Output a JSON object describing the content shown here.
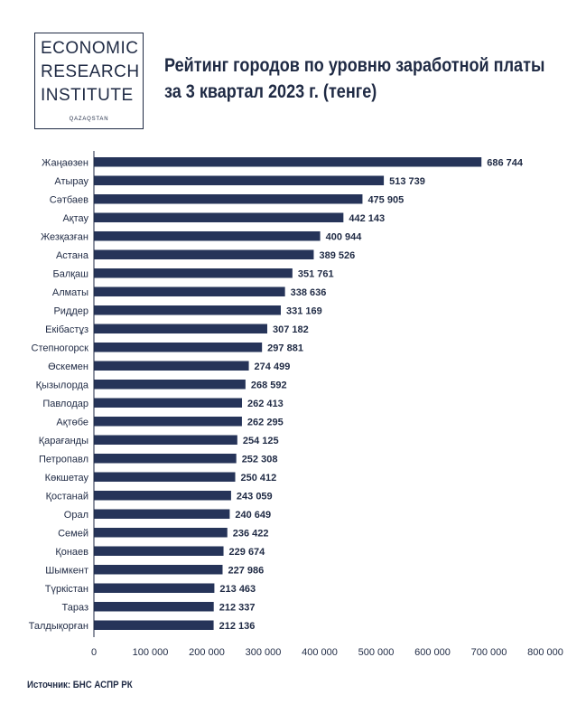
{
  "logo": {
    "line1": "ECONOMIC",
    "line2": "RESEARCH",
    "line3": "INSTITUTE",
    "sub": "QAZAQSTAN"
  },
  "title": {
    "line1": "Рейтинг городов по уровню заработной платы",
    "line2": "за 3 квартал 2023 г. (тенге)"
  },
  "source": "Источник: БНС АСПР РК",
  "chart_data": {
    "type": "bar",
    "orientation": "horizontal",
    "categories": [
      "Жаңаөзен",
      "Атырау",
      "Сәтбаев",
      "Ақтау",
      "Жезқазған",
      "Астана",
      "Балқаш",
      "Алматы",
      "Риддер",
      "Екібастұз",
      "Степногорск",
      "Өскемен",
      "Қызылорда",
      "Павлодар",
      "Ақтөбе",
      "Қарағанды",
      "Петропавл",
      "Көкшетау",
      "Қостанай",
      "Орал",
      "Семей",
      "Қонаев",
      "Шымкент",
      "Түркістан",
      "Тараз",
      "Талдықорған"
    ],
    "values": [
      686744,
      513739,
      475905,
      442143,
      400944,
      389526,
      351761,
      338636,
      331169,
      307182,
      297881,
      274499,
      268592,
      262413,
      262295,
      254125,
      252308,
      250412,
      243059,
      240649,
      236422,
      229674,
      227986,
      213463,
      212337,
      212136
    ],
    "value_labels": [
      "686 744",
      "513 739",
      "475 905",
      "442 143",
      "400 944",
      "389 526",
      "351 761",
      "338 636",
      "331 169",
      "307 182",
      "297 881",
      "274 499",
      "268 592",
      "262 413",
      "262 295",
      "254 125",
      "252 308",
      "250 412",
      "243 059",
      "240 649",
      "236 422",
      "229 674",
      "227 986",
      "213 463",
      "212 337",
      "212 136"
    ],
    "xlim": [
      0,
      800000
    ],
    "xticks": [
      0,
      100000,
      200000,
      300000,
      400000,
      500000,
      600000,
      700000,
      800000
    ],
    "xtick_labels": [
      "0",
      "100 000",
      "200 000",
      "300 000",
      "400 000",
      "500 000",
      "600 000",
      "700 000",
      "800 000"
    ],
    "bar_color": "#263459",
    "grid": false,
    "legend": "none"
  }
}
